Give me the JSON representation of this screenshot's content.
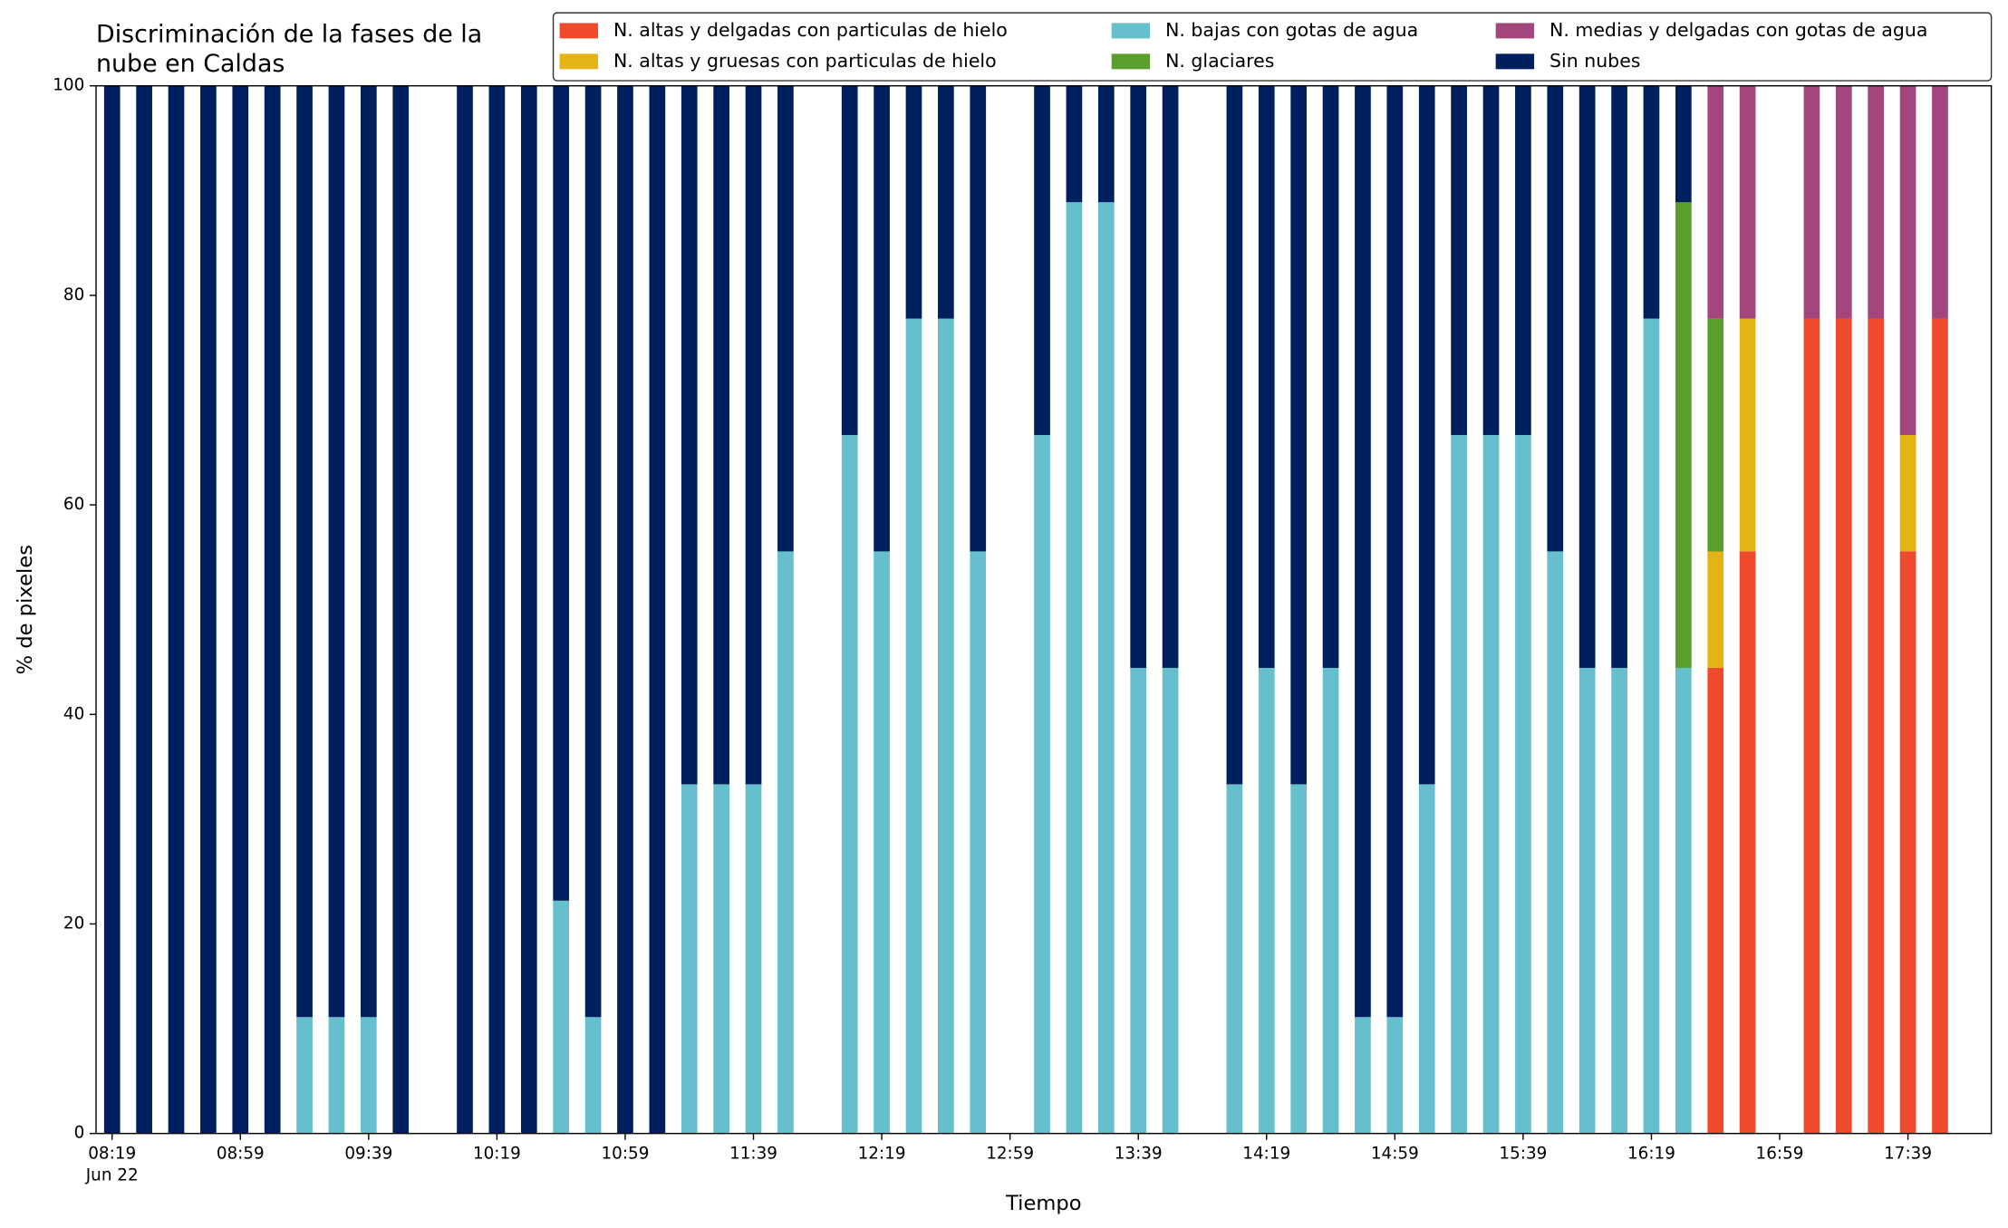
{
  "chart_data": {
    "type": "stacked_bar",
    "title": "Discriminación de la fases de la nube en Caldas",
    "xlabel": "Tiempo",
    "ylabel": "% de pixeles",
    "x": [
      "08:19",
      "08:29",
      "08:39",
      "08:49",
      "08:59",
      "09:09",
      "09:19",
      "09:29",
      "09:39",
      "09:49",
      "10:09",
      "10:19",
      "10:29",
      "10:39",
      "10:49",
      "10:59",
      "11:09",
      "11:19",
      "11:29",
      "11:39",
      "11:49",
      "12:09",
      "12:19",
      "12:29",
      "12:39",
      "12:49",
      "13:09",
      "13:19",
      "13:29",
      "13:39",
      "13:49",
      "14:09",
      "14:19",
      "14:29",
      "14:39",
      "14:49",
      "14:59",
      "15:09",
      "15:19",
      "15:29",
      "15:39",
      "15:49",
      "15:59",
      "16:09",
      "16:19",
      "16:29",
      "16:39",
      "16:49",
      "17:09",
      "17:19",
      "17:29",
      "17:39",
      "17:49"
    ],
    "xlim": [
      "08:14",
      "18:05"
    ],
    "xticks": [
      "08:19",
      "08:59",
      "09:39",
      "10:19",
      "10:59",
      "11:39",
      "12:19",
      "12:59",
      "13:39",
      "14:19",
      "14:59",
      "15:39",
      "16:19",
      "16:59",
      "17:39"
    ],
    "xtick_sublabel": "Jun 22",
    "ylim": [
      0,
      100
    ],
    "yticks": [
      0,
      20,
      40,
      60,
      80,
      100
    ],
    "legend_position": "top",
    "series": [
      {
        "name": "N. altas y delgadas con particulas de hielo",
        "color": "#f04a2c",
        "values": [
          0,
          0,
          0,
          0,
          0,
          0,
          0,
          0,
          0,
          0,
          0,
          0,
          0,
          0,
          0,
          0,
          0,
          0,
          0,
          0,
          0,
          0,
          0,
          0,
          0,
          0,
          0,
          0,
          0,
          0,
          0,
          0,
          0,
          0,
          0,
          0,
          0,
          0,
          0,
          0,
          0,
          0,
          0,
          0,
          0,
          0,
          44.44,
          55.56,
          77.78,
          77.78,
          77.78,
          55.56,
          77.78
        ]
      },
      {
        "name": "N. altas y gruesas con particulas de hielo",
        "color": "#e4b415",
        "values": [
          0,
          0,
          0,
          0,
          0,
          0,
          0,
          0,
          0,
          0,
          0,
          0,
          0,
          0,
          0,
          0,
          0,
          0,
          0,
          0,
          0,
          0,
          0,
          0,
          0,
          0,
          0,
          0,
          0,
          0,
          0,
          0,
          0,
          0,
          0,
          0,
          0,
          0,
          0,
          0,
          0,
          0,
          0,
          0,
          0,
          0,
          11.11,
          22.22,
          0,
          0,
          0,
          11.11,
          0
        ]
      },
      {
        "name": "N. bajas con gotas de agua",
        "color": "#66bfcc",
        "values": [
          0,
          0,
          0,
          0,
          0,
          0,
          11.11,
          11.11,
          11.11,
          0,
          0,
          0,
          0,
          22.22,
          11.11,
          0,
          0,
          33.33,
          33.33,
          33.33,
          55.56,
          66.67,
          55.56,
          77.78,
          77.78,
          55.56,
          66.67,
          88.89,
          88.89,
          44.44,
          44.44,
          33.33,
          44.44,
          33.33,
          44.44,
          11.11,
          11.11,
          33.33,
          66.67,
          66.67,
          66.67,
          55.56,
          44.44,
          44.44,
          77.78,
          44.44,
          0,
          0,
          0,
          0,
          0,
          0,
          0
        ]
      },
      {
        "name": "N. glaciares",
        "color": "#5a9e2d",
        "values": [
          0,
          0,
          0,
          0,
          0,
          0,
          0,
          0,
          0,
          0,
          0,
          0,
          0,
          0,
          0,
          0,
          0,
          0,
          0,
          0,
          0,
          0,
          0,
          0,
          0,
          0,
          0,
          0,
          0,
          0,
          0,
          0,
          0,
          0,
          0,
          0,
          0,
          0,
          0,
          0,
          0,
          0,
          0,
          0,
          0,
          44.44,
          22.22,
          0,
          0,
          0,
          0,
          0,
          0
        ]
      },
      {
        "name": "N. medias y delgadas con gotas de agua",
        "color": "#a2467d",
        "values": [
          0,
          0,
          0,
          0,
          0,
          0,
          0,
          0,
          0,
          0,
          0,
          0,
          0,
          0,
          0,
          0,
          0,
          0,
          0,
          0,
          0,
          0,
          0,
          0,
          0,
          0,
          0,
          0,
          0,
          0,
          0,
          0,
          0,
          0,
          0,
          0,
          0,
          0,
          0,
          0,
          0,
          0,
          0,
          0,
          0,
          0,
          22.22,
          22.22,
          22.22,
          22.22,
          22.22,
          33.33,
          22.22
        ]
      },
      {
        "name": "Sin nubes",
        "color": "#001f5f",
        "values": [
          100,
          100,
          100,
          100,
          100,
          100,
          88.89,
          88.89,
          88.89,
          100,
          100,
          100,
          100,
          77.78,
          88.89,
          100,
          100,
          66.67,
          66.67,
          66.67,
          44.44,
          33.33,
          44.44,
          22.22,
          22.22,
          44.44,
          33.33,
          11.11,
          11.11,
          55.56,
          55.56,
          66.67,
          55.56,
          66.67,
          55.56,
          88.89,
          88.89,
          66.67,
          33.33,
          33.33,
          33.33,
          44.44,
          55.56,
          55.56,
          22.22,
          11.11,
          0,
          0,
          0,
          0,
          0,
          0,
          0
        ]
      }
    ]
  }
}
